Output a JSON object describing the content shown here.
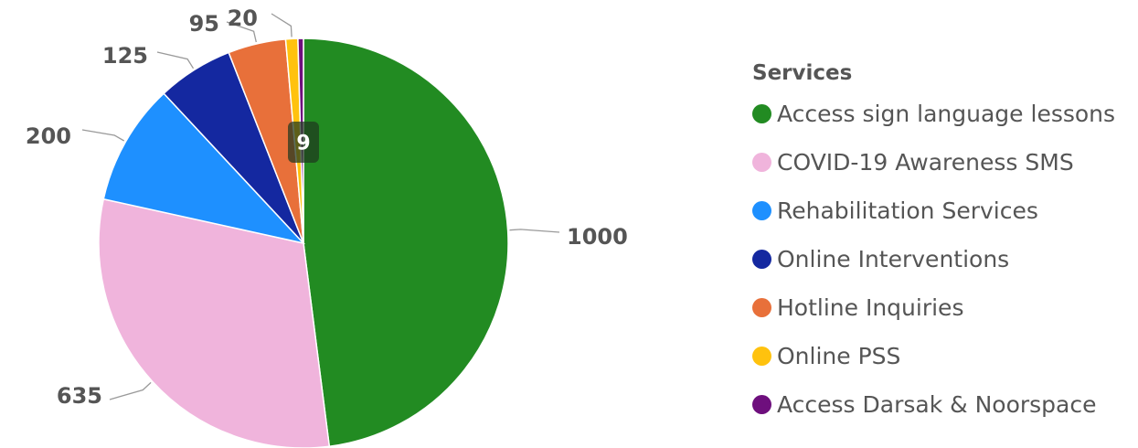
{
  "chart_data": {
    "type": "pie",
    "legend_title": "Services",
    "legend_position": "right",
    "slices": [
      {
        "label": "Access sign language lessons",
        "value": 1000,
        "color": "#228B22"
      },
      {
        "label": "COVID-19 Awareness SMS",
        "value": 635,
        "color": "#F0B4DC"
      },
      {
        "label": "Rehabilitation Services",
        "value": 200,
        "color": "#1E90FF"
      },
      {
        "label": "Online Interventions",
        "value": 125,
        "color": "#1428A0"
      },
      {
        "label": "Hotline Inquiries",
        "value": 95,
        "color": "#E8703A"
      },
      {
        "label": "Online PSS",
        "value": 20,
        "color": "#FFC20E"
      },
      {
        "label": "Access Darsak & Noorspace",
        "value": 9,
        "color": "#6E0F7D"
      }
    ]
  }
}
